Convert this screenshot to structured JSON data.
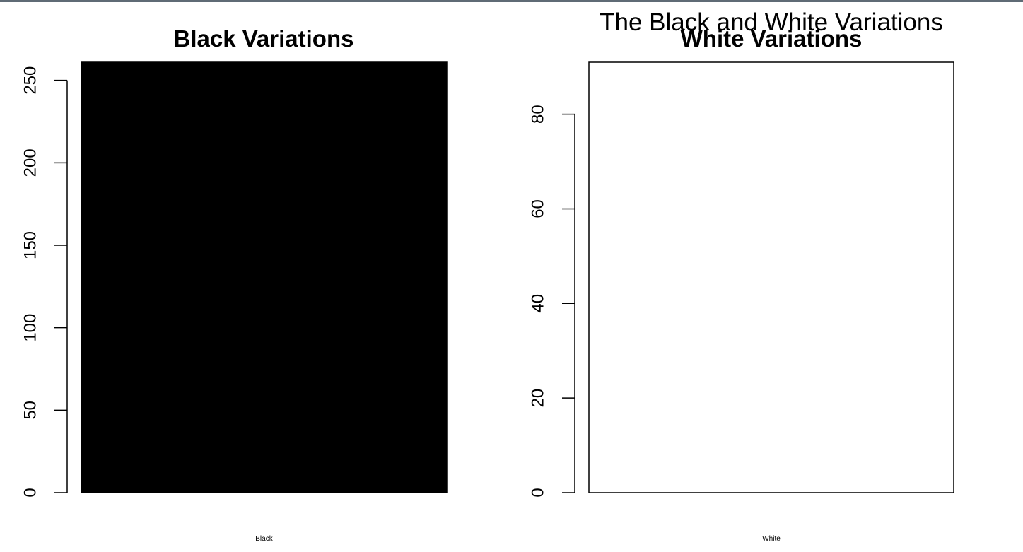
{
  "figure": {
    "title": "The Black and White Variations",
    "frame_color": "#5f6b75"
  },
  "chart_data": [
    {
      "type": "bar",
      "title": "Black Variations",
      "categories": [
        "Black"
      ],
      "values": [
        261
      ],
      "bar_fill": "#000000",
      "bar_stroke": "#000000",
      "y_ticks": [
        0,
        50,
        100,
        150,
        200,
        250
      ],
      "ylim": [
        0,
        261
      ],
      "xlabel": "",
      "ylabel": "",
      "grid": false,
      "legend": "none"
    },
    {
      "type": "bar",
      "title": "White Variations",
      "categories": [
        "White"
      ],
      "values": [
        91
      ],
      "bar_fill": "#ffffff",
      "bar_stroke": "#000000",
      "y_ticks": [
        0,
        20,
        40,
        60,
        80
      ],
      "ylim": [
        0,
        91
      ],
      "xlabel": "",
      "ylabel": "",
      "grid": false,
      "legend": "none"
    }
  ]
}
